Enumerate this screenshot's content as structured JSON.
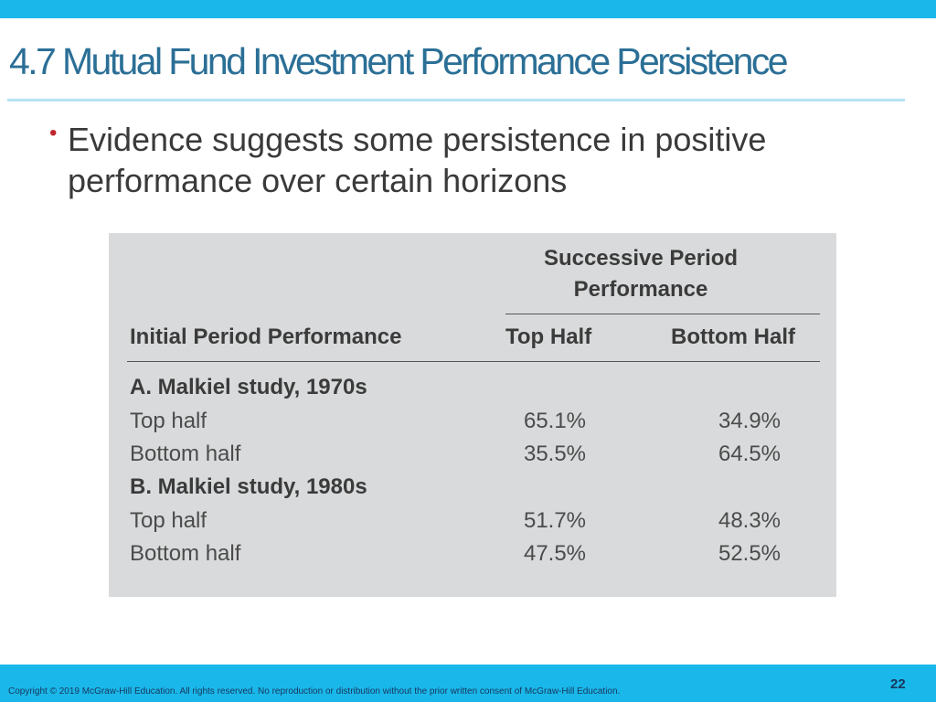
{
  "slide": {
    "title": "4.7 Mutual Fund Investment Performance Persistence",
    "bullet": "Evidence suggests some persistence in positive performance over certain horizons",
    "page_number": "22",
    "copyright": "Copyright © 2019 McGraw-Hill Education. All rights reserved. No reproduction or distribution without the prior written consent of McGraw-Hill Education."
  },
  "table": {
    "super_header_line1": "Successive Period",
    "super_header_line2": "Performance",
    "col_initial": "Initial Period Performance",
    "col_top": "Top Half",
    "col_bottom": "Bottom Half",
    "groups": [
      {
        "name": "A. Malkiel study, 1970s",
        "rows": [
          {
            "label": "Top half",
            "top": "65.1%",
            "bottom": "34.9%"
          },
          {
            "label": "Bottom half",
            "top": "35.5%",
            "bottom": "64.5%"
          }
        ]
      },
      {
        "name": "B. Malkiel study, 1980s",
        "rows": [
          {
            "label": "Top half",
            "top": "51.7%",
            "bottom": "48.3%"
          },
          {
            "label": "Bottom half",
            "top": "47.5%",
            "bottom": "52.5%"
          }
        ]
      }
    ]
  },
  "colors": {
    "accent_bar": "#1ab8ea",
    "title": "#2b6f96",
    "bullet": "#c0262d",
    "table_bg": "#d9dadb"
  }
}
